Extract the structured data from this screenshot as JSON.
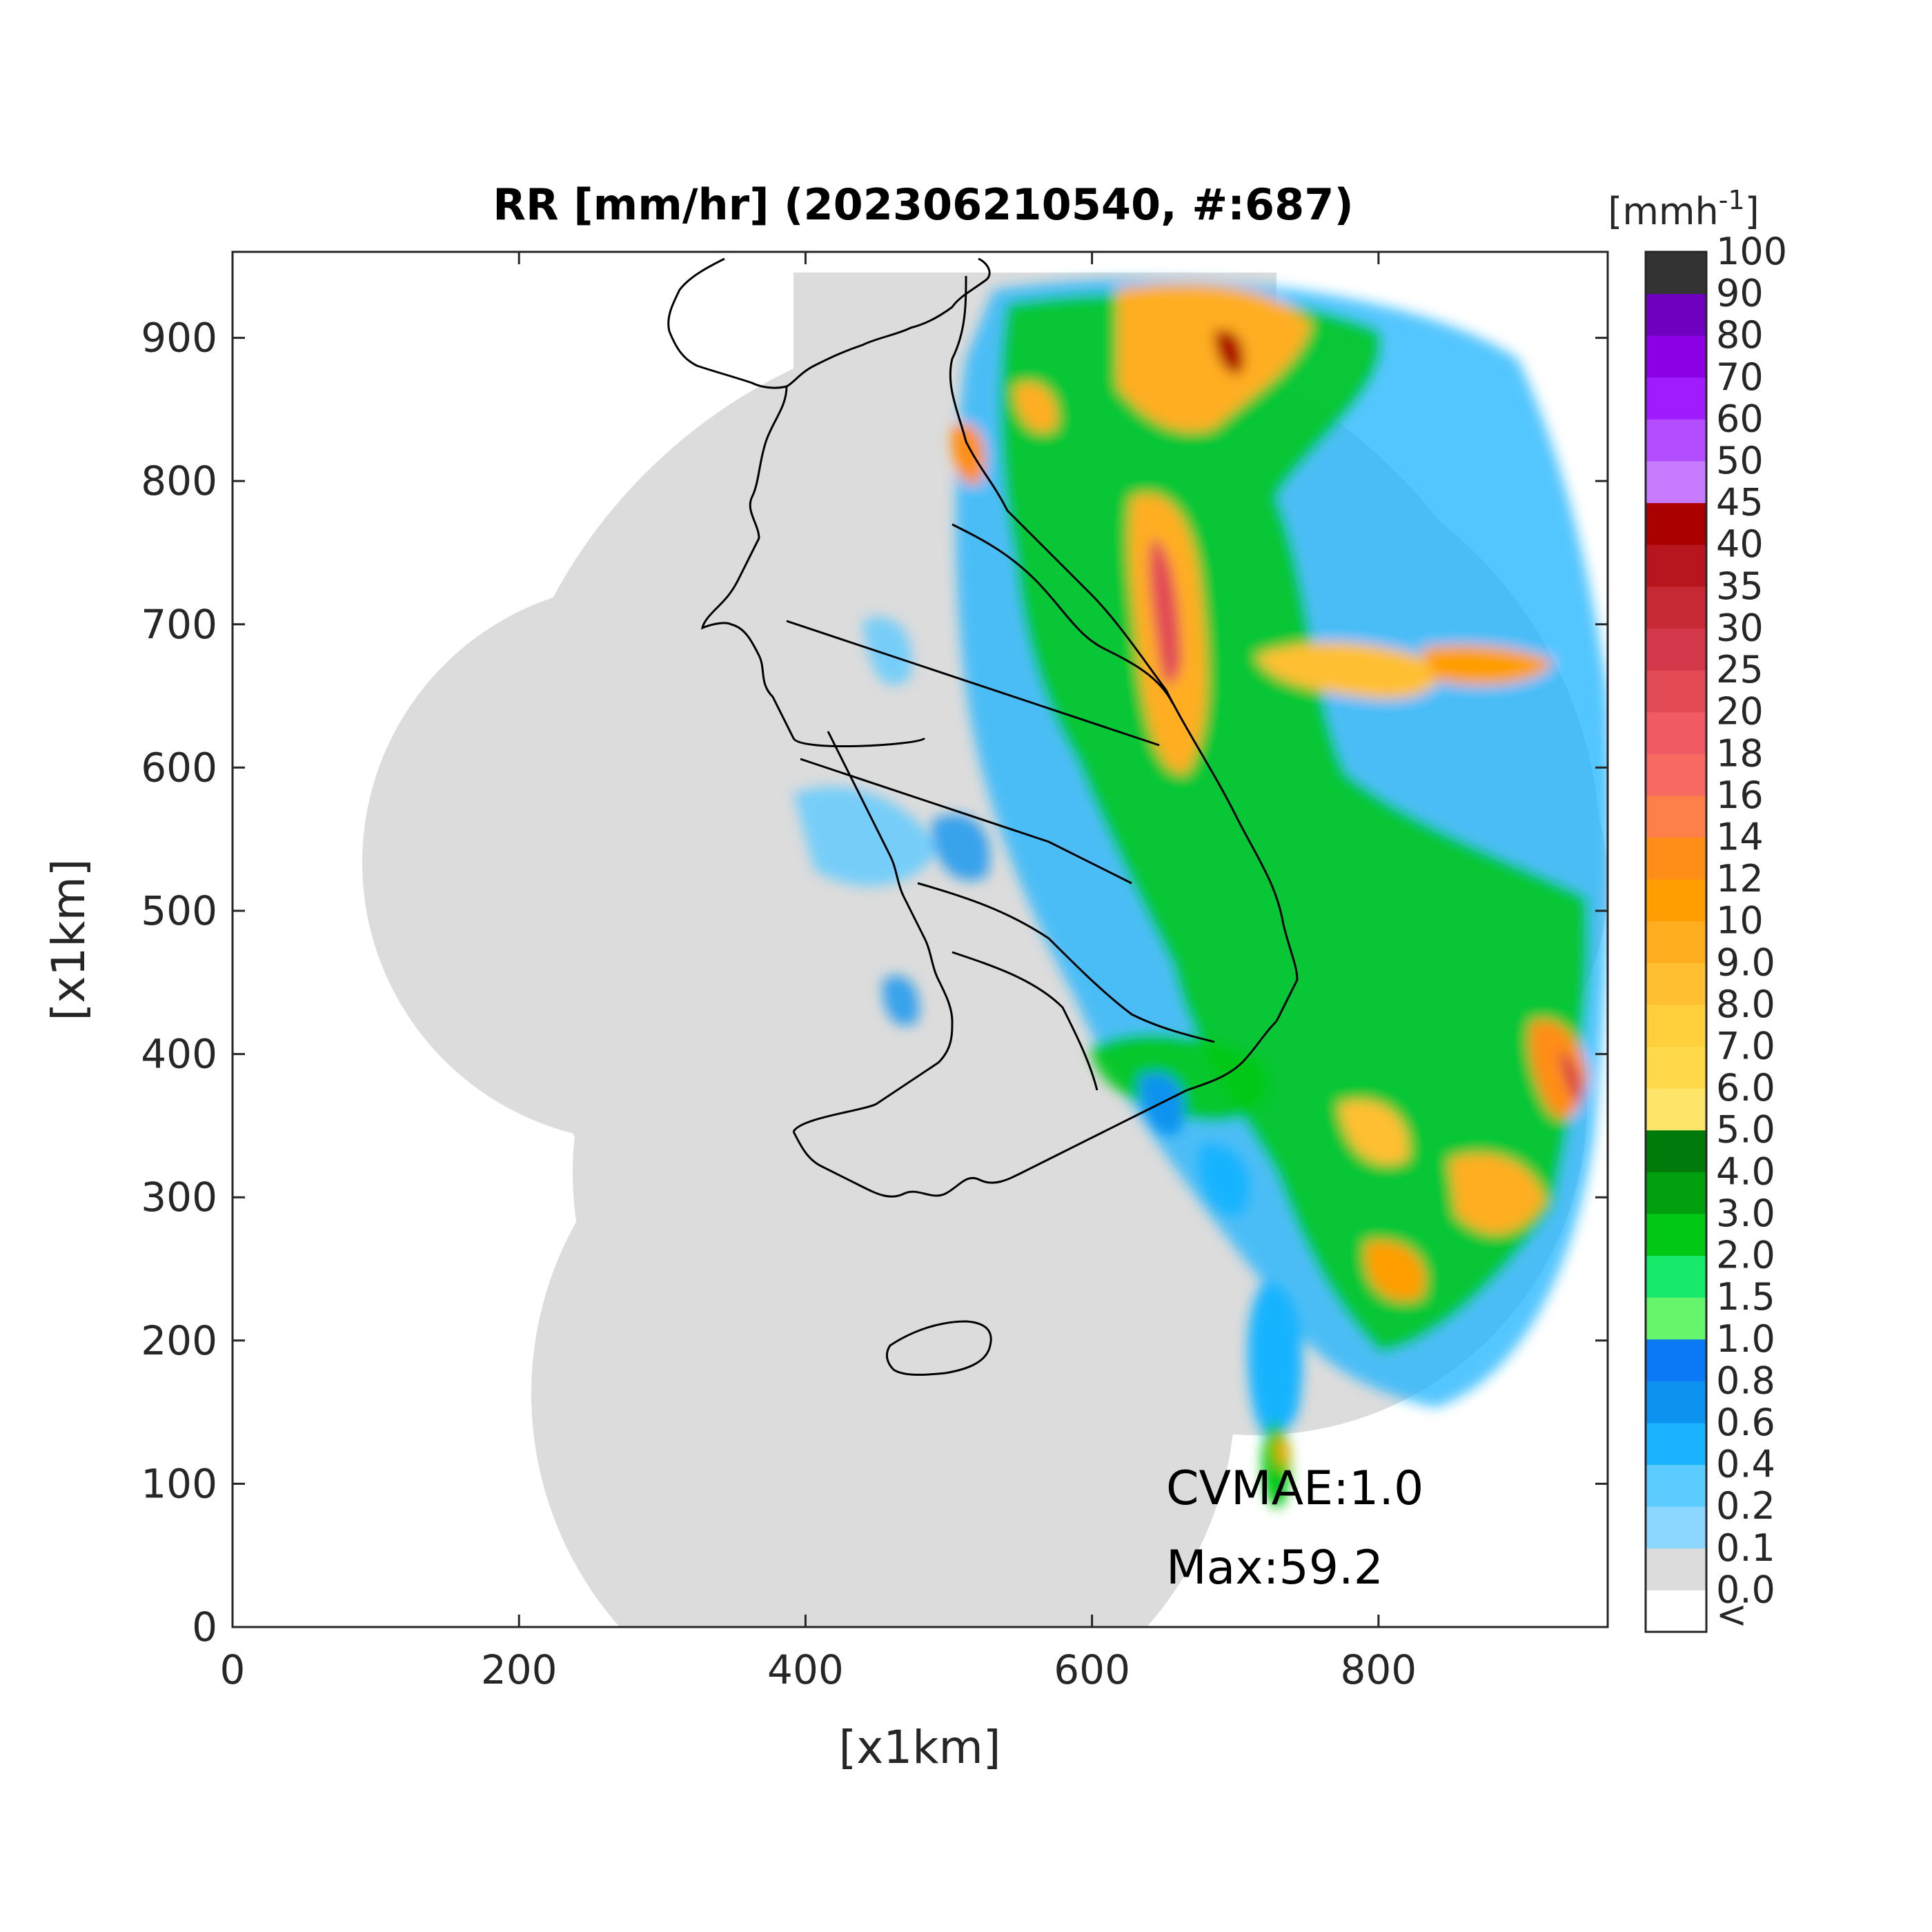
{
  "title": "RR [mm/hr] (202306210540, #:687)",
  "xlabel": "[x1km]",
  "ylabel": "[x1km]",
  "x_ticks": [
    "0",
    "200",
    "400",
    "600",
    "800"
  ],
  "y_ticks": [
    "0",
    "100",
    "200",
    "300",
    "400",
    "500",
    "600",
    "700",
    "800",
    "900"
  ],
  "annotations": {
    "cvmae": "CVMAE:1.0",
    "max": "Max:59.2"
  },
  "colorbar": {
    "unit_prefix": "[mmh",
    "unit_sup": "-1",
    "unit_suffix": "]",
    "labels": [
      "<",
      "0.0",
      "0.1",
      "0.2",
      "0.4",
      "0.6",
      "0.8",
      "1.0",
      "1.5",
      "2.0",
      "3.0",
      "4.0",
      "5.0",
      "6.0",
      "7.0",
      "8.0",
      "9.0",
      "10",
      "12",
      "14",
      "16",
      "18",
      "20",
      "25",
      "30",
      "35",
      "40",
      "45",
      "50",
      "60",
      "70",
      "80",
      "90",
      "100"
    ],
    "colors": [
      "#ffffff",
      "#dcdcdc",
      "#8bd7ff",
      "#5ccbff",
      "#19b3ff",
      "#0d93ef",
      "#0b78f5",
      "#67f56b",
      "#17e96a",
      "#00c814",
      "#00a00f",
      "#007a0b",
      "#ffe46a",
      "#ffd94a",
      "#ffcf3c",
      "#ffbf30",
      "#ffae20",
      "#ff9e00",
      "#ff8e19",
      "#ff7f4a",
      "#f76a62",
      "#f05a62",
      "#e24a56",
      "#d3384a",
      "#c72934",
      "#b8161e",
      "#aa0000",
      "#c77cff",
      "#b34dff",
      "#a01cff",
      "#8c00e6",
      "#7000c0",
      "#333333"
    ]
  },
  "map_data": {
    "x_range": [
      0,
      960
    ],
    "y_range": [
      0,
      960
    ],
    "max_value": 59.2,
    "cvmae": 1.0
  }
}
